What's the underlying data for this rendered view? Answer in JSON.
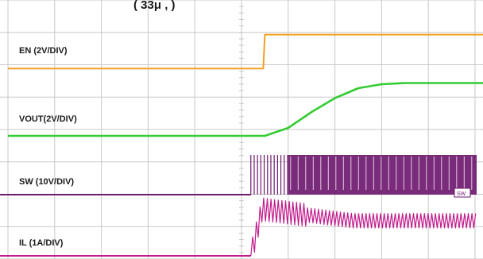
{
  "header_fragment": "( 33μ  ,  )",
  "chart_data": {
    "type": "line",
    "title": "",
    "xlabel": "",
    "ylabel": "",
    "grid": true,
    "x_divisions": 10,
    "y_divisions": 8,
    "x": [
      0,
      0.5,
      1,
      1.5,
      2,
      2.5,
      3,
      3.5,
      4,
      4.5,
      5,
      5.5,
      6,
      6.5,
      7,
      7.5,
      8,
      8.5,
      9,
      9.5,
      10
    ],
    "series": [
      {
        "name": "EN (2V/DIV)",
        "color": "#f0a020",
        "values": [
          0.05,
          0.05,
          0.05,
          0.05,
          0.05,
          0.05,
          0.05,
          0.05,
          0.05,
          0.05,
          0.05,
          1.25,
          1.25,
          1.25,
          1.25,
          1.25,
          1.25,
          1.25,
          1.25,
          1.25,
          1.25
        ]
      },
      {
        "name": "VOUT(2V/DIV)",
        "color": "#33cc33",
        "values": [
          0,
          0,
          0,
          0,
          0,
          0,
          0,
          0,
          0,
          0,
          0,
          0,
          0.2,
          0.6,
          0.95,
          1.2,
          1.3,
          1.33,
          1.33,
          1.33,
          1.33
        ]
      },
      {
        "name": "SW (10V/DIV)",
        "color": "#6e1a6e",
        "values": [
          0,
          0,
          0,
          0,
          0,
          0,
          0,
          0,
          0,
          0,
          0,
          0,
          1,
          1,
          1,
          1,
          1,
          1,
          1,
          1,
          1
        ],
        "note_shape": "switching"
      },
      {
        "name": "IL (1A/DIV)",
        "color": "#c21a8c",
        "values": [
          0,
          0,
          0,
          0,
          0,
          0,
          0,
          0,
          0,
          0,
          0,
          0,
          0.8,
          0.72,
          0.7,
          0.68,
          0.66,
          0.65,
          0.65,
          0.65,
          0.65
        ],
        "note_shape": "ripple"
      }
    ],
    "channel_markers": [
      "SW"
    ]
  }
}
